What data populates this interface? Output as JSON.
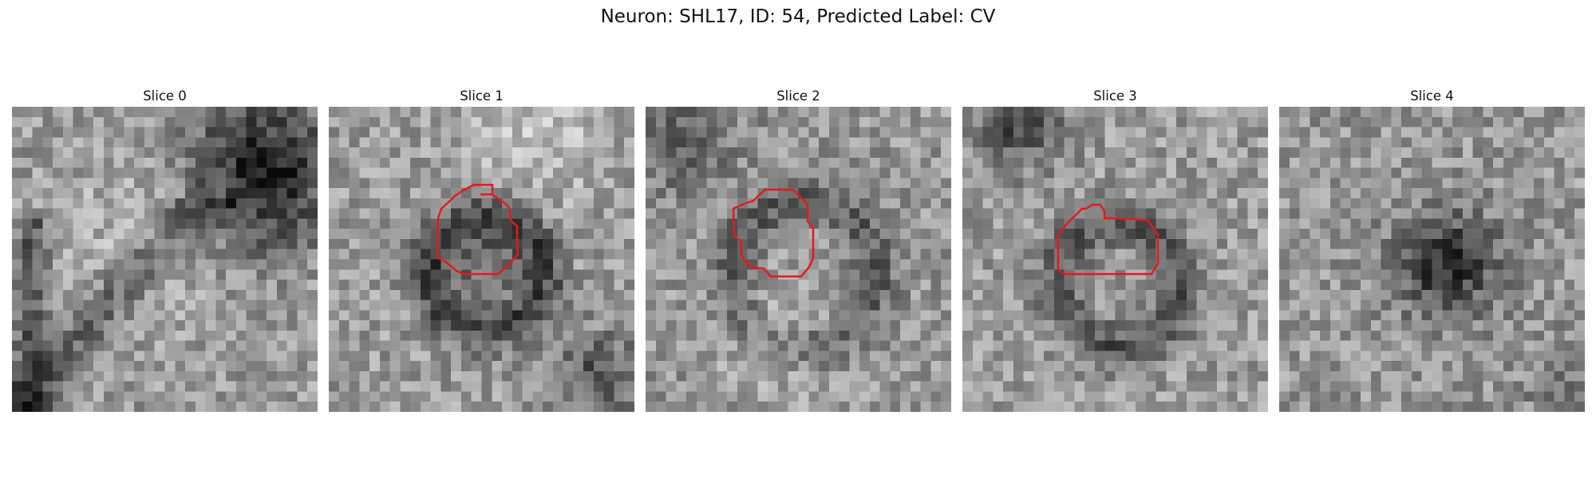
{
  "figure": {
    "title": "Neuron: SHL17, ID: 54, Predicted Label: CV",
    "panels": [
      {
        "label": "Slice 0",
        "has_contour": false
      },
      {
        "label": "Slice 1",
        "has_contour": true
      },
      {
        "label": "Slice 2",
        "has_contour": true
      },
      {
        "label": "Slice 3",
        "has_contour": true
      },
      {
        "label": "Slice 4",
        "has_contour": false
      }
    ],
    "colormap": "grayscale",
    "contour_color": "#e31a1c"
  }
}
